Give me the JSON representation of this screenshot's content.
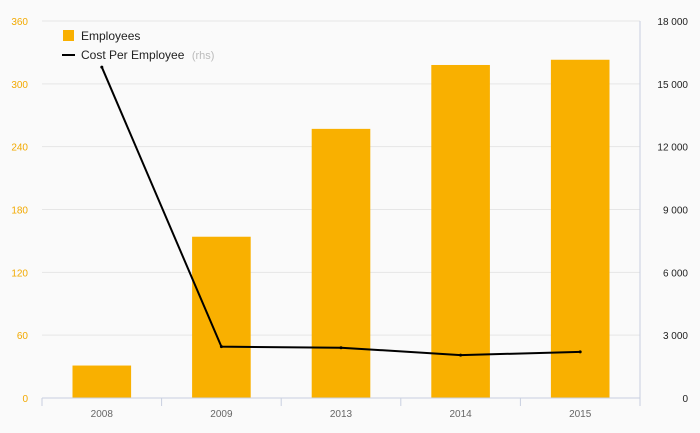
{
  "chart_data": {
    "type": "bar",
    "categories": [
      "2008",
      "2009",
      "2013",
      "2014",
      "2015"
    ],
    "series": [
      {
        "name": "Employees",
        "type": "bar",
        "axis": "left",
        "values": [
          31,
          154,
          257,
          318,
          323
        ],
        "color": "#f9b000"
      },
      {
        "name": "Cost Per Employee",
        "legend_note": "(rhs)",
        "type": "line",
        "axis": "right",
        "values": [
          15800,
          2450,
          2400,
          2050,
          2200
        ],
        "color": "#000000"
      }
    ],
    "y_left": {
      "ticks": [
        "0",
        "60",
        "120",
        "180",
        "240",
        "300",
        "360"
      ],
      "range": [
        0,
        360
      ],
      "tick_color": "#f2a900"
    },
    "y_right": {
      "ticks": [
        "0",
        "3 000",
        "6 000",
        "9 000",
        "12 000",
        "15 000",
        "18 000"
      ],
      "range": [
        0,
        18000
      ]
    },
    "grid": true,
    "legend_position": "top-left"
  }
}
